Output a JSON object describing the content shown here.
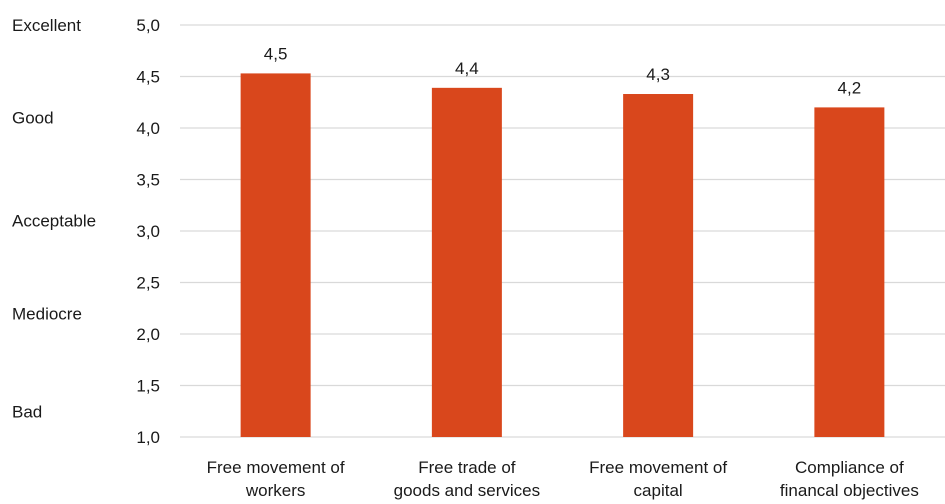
{
  "chart_data": {
    "type": "bar",
    "categories": [
      [
        "Free movement of",
        "workers"
      ],
      [
        "Free trade of",
        "goods and services"
      ],
      [
        "Free movement of",
        "capital"
      ],
      [
        "Compliance of",
        "financal objectives"
      ]
    ],
    "values": [
      4.53,
      4.39,
      4.33,
      4.2
    ],
    "value_labels": [
      "4,5",
      "4,4",
      "4,3",
      "4,2"
    ],
    "ylim": [
      1.0,
      5.0
    ],
    "yticks": [
      1.0,
      1.5,
      2.0,
      2.5,
      3.0,
      3.5,
      4.0,
      4.5,
      5.0
    ],
    "ytick_labels": [
      "1,0",
      "1,5",
      "2,0",
      "2,5",
      "3,0",
      "3,5",
      "4,0",
      "4,5",
      "5,0"
    ],
    "qualitative_labels": [
      {
        "text": "Excellent",
        "y": 5.0
      },
      {
        "text": "Good",
        "y": 4.1
      },
      {
        "text": "Acceptable",
        "y": 3.1
      },
      {
        "text": "Mediocre",
        "y": 2.2
      },
      {
        "text": "Bad",
        "y": 1.25
      }
    ],
    "bar_color": "#d9471c",
    "grid_color": "#d9d9d9",
    "grid": true,
    "legend": "none"
  }
}
